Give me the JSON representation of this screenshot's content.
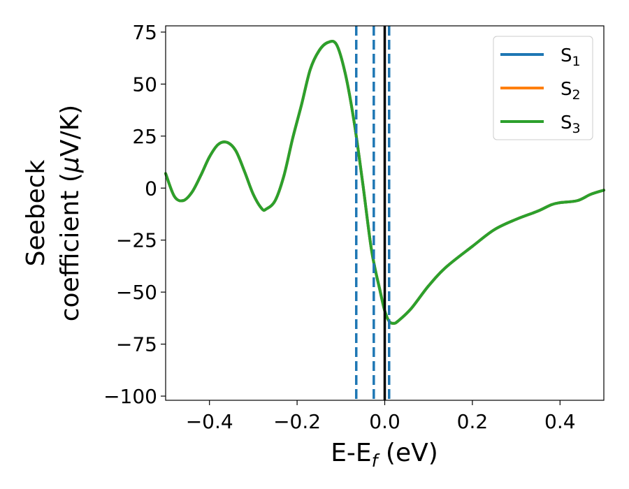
{
  "chart_data": {
    "type": "line",
    "xlabel": "E-E",
    "xlabel_sub": "f",
    "xlabel_unit": " (eV)",
    "ylabel_line1": "Seebeck",
    "ylabel_line2_prefix": "coefficient  (",
    "ylabel_mu": "μ",
    "ylabel_line2_suffix": "V/K)",
    "xlim": [
      -0.5,
      0.5
    ],
    "ylim": [
      -102,
      78
    ],
    "xticks": [
      -0.4,
      -0.2,
      0.0,
      0.2,
      0.4
    ],
    "xtick_labels": [
      "−0.4",
      "−0.2",
      "0.0",
      "0.2",
      "0.4"
    ],
    "yticks": [
      75,
      50,
      25,
      0,
      -25,
      -50,
      -75,
      -100
    ],
    "ytick_labels": [
      "75",
      "50",
      "25",
      "0",
      "−25",
      "−50",
      "−75",
      "−100"
    ],
    "grid": false,
    "legend_position": "top-right",
    "x": [
      -0.5,
      -0.48,
      -0.46,
      -0.44,
      -0.42,
      -0.4,
      -0.38,
      -0.36,
      -0.34,
      -0.32,
      -0.3,
      -0.28,
      -0.27,
      -0.25,
      -0.23,
      -0.21,
      -0.19,
      -0.17,
      -0.15,
      -0.13,
      -0.11,
      -0.09,
      -0.07,
      -0.05,
      -0.03,
      -0.01,
      0.0,
      0.01,
      0.02,
      0.03,
      0.06,
      0.1,
      0.14,
      0.2,
      0.25,
      0.3,
      0.35,
      0.38,
      0.4,
      0.44,
      0.47,
      0.5
    ],
    "series": [
      {
        "name": "S",
        "name_sub": "1",
        "color": "#1f77b4",
        "values": [
          7,
          -4,
          -6,
          -2,
          6,
          15,
          21,
          22,
          18,
          8,
          -3,
          -10,
          -10,
          -6,
          6,
          24,
          40,
          57,
          66,
          70,
          69,
          55,
          32,
          2,
          -30,
          -50,
          -59,
          -64,
          -65,
          -64,
          -58,
          -47,
          -38,
          -28,
          -20,
          -15,
          -11,
          -8,
          -7,
          -6,
          -3,
          -1
        ]
      },
      {
        "name": "S",
        "name_sub": "2",
        "color": "#ff7f0e",
        "values": [
          7,
          -4,
          -6,
          -2,
          6,
          15,
          21,
          22,
          18,
          8,
          -3,
          -10,
          -10,
          -6,
          6,
          24,
          40,
          57,
          66,
          70,
          69,
          55,
          32,
          2,
          -30,
          -50,
          -59,
          -64,
          -65,
          -64,
          -58,
          -47,
          -38,
          -28,
          -20,
          -15,
          -11,
          -8,
          -7,
          -6,
          -3,
          -1
        ]
      },
      {
        "name": "S",
        "name_sub": "3",
        "color": "#2ca02c",
        "values": [
          7,
          -4,
          -6,
          -2,
          6,
          15,
          21,
          22,
          18,
          8,
          -3,
          -10,
          -10,
          -6,
          6,
          24,
          40,
          57,
          66,
          70,
          69,
          55,
          32,
          2,
          -30,
          -50,
          -59,
          -64,
          -65,
          -64,
          -58,
          -47,
          -38,
          -28,
          -20,
          -15,
          -11,
          -8,
          -7,
          -6,
          -3,
          -1
        ]
      }
    ],
    "vlines_dashed": [
      -0.065,
      -0.025,
      0.01
    ],
    "vlines_dashed_color": "#1f77b4",
    "vline_solid": 0.0,
    "vline_solid_color": "#000000"
  }
}
